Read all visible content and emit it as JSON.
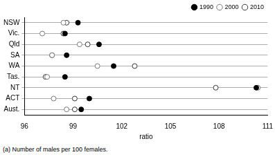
{
  "chart_data": {
    "type": "scatter",
    "categories": [
      "NSW",
      "Vic.",
      "Qld",
      "SA",
      "WA",
      "Tas.",
      "NT",
      "ACT",
      "Aust."
    ],
    "series": [
      {
        "name": "1990",
        "color": "#000000",
        "marker": "filled_circle",
        "values": [
          99.3,
          98.5,
          100.6,
          98.6,
          101.5,
          98.5,
          110.3,
          100.0,
          99.5
        ]
      },
      {
        "name": "2000",
        "color": "#777777",
        "marker": "open_circle",
        "values": [
          98.4,
          97.1,
          99.4,
          97.7,
          100.5,
          97.4,
          110.4,
          97.8,
          98.6
        ]
      },
      {
        "name": "2010",
        "color": "#333333",
        "marker": "open_circle",
        "values": [
          98.6,
          98.4,
          99.9,
          97.7,
          102.8,
          97.3,
          107.8,
          99.1,
          99.1
        ]
      }
    ],
    "x_label": "ratio",
    "xlim": [
      96,
      111
    ],
    "xticks": [
      96,
      99,
      102,
      105,
      108,
      111
    ],
    "grid": true,
    "legend": "top right",
    "footnote": "(a) Number of males per 100 females."
  }
}
